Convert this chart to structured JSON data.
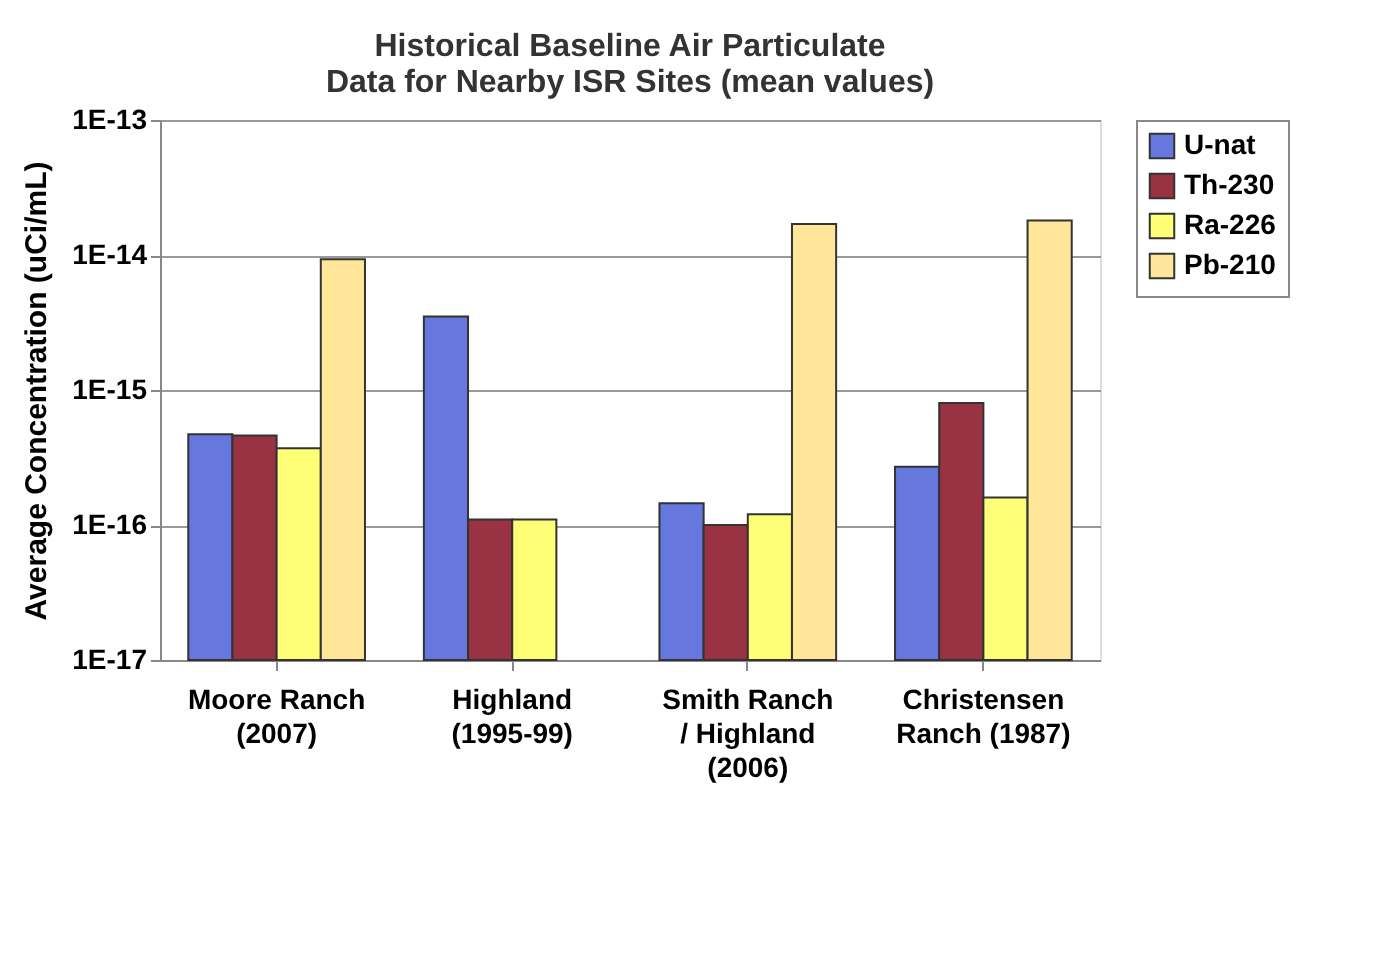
{
  "chart_data": {
    "type": "bar",
    "title": [
      "Historical Baseline Air Particulate",
      "Data for Nearby ISR Sites (mean values)"
    ],
    "ylabel": "Average Concentration (uCi/mL)",
    "categories": [
      "Moore Ranch\n(2007)",
      "Highland\n(1995-99)",
      "Smith Ranch\n/ Highland\n(2006)",
      "Christensen\nRanch (1987)"
    ],
    "series": [
      {
        "name": "U-nat",
        "color": "#6677dd",
        "values": [
          4.7e-16,
          3.5e-15,
          1.45e-16,
          2.7e-16
        ]
      },
      {
        "name": "Th-230",
        "color": "#993344",
        "values": [
          4.6e-16,
          1.1e-16,
          1e-16,
          8e-16
        ]
      },
      {
        "name": "Ra-226",
        "color": "#ffff77",
        "values": [
          3.7e-16,
          1.1e-16,
          1.2e-16,
          1.6e-16
        ]
      },
      {
        "name": "Pb-210",
        "color": "#ffe699",
        "values": [
          9.3e-15,
          null,
          1.7e-14,
          1.8e-14
        ]
      }
    ],
    "log": true,
    "ylim": [
      1e-17,
      1e-13
    ],
    "yticks": [
      {
        "value": 1e-17,
        "label": "1E-17"
      },
      {
        "value": 1e-16,
        "label": "1E-16"
      },
      {
        "value": 1e-15,
        "label": "1E-15"
      },
      {
        "value": 1e-14,
        "label": "1E-14"
      },
      {
        "value": 1e-13,
        "label": "1E-13"
      }
    ],
    "grid": "y",
    "legend": "top right"
  }
}
